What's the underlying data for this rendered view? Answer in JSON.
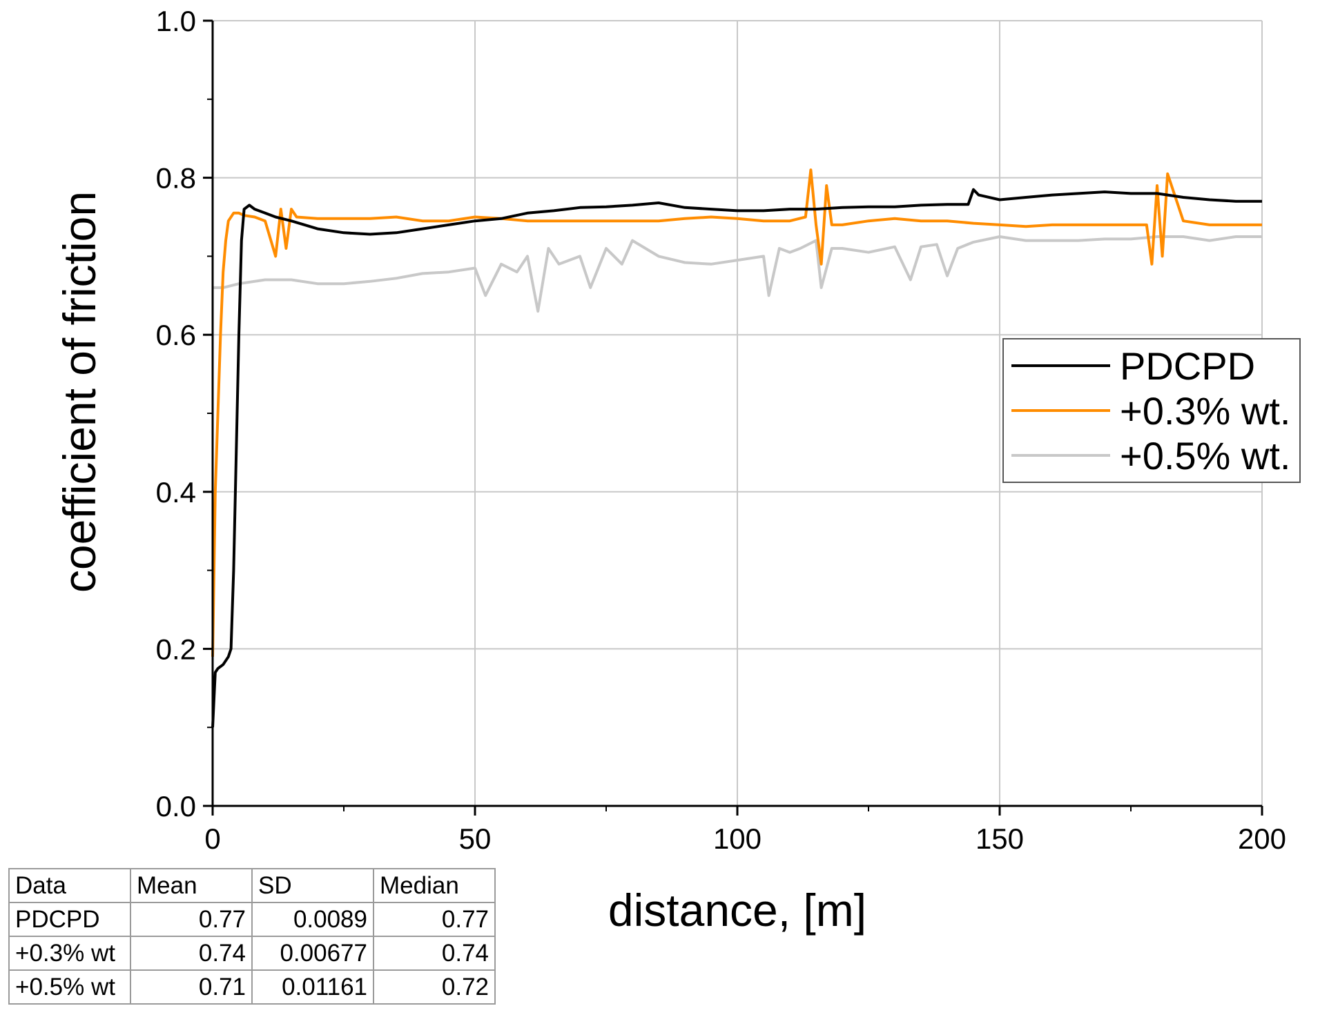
{
  "chart_data": {
    "type": "line",
    "xlabel": "distance, [m]",
    "ylabel": "coefficient of friction",
    "xlim": [
      0,
      200
    ],
    "ylim": [
      0,
      1.0
    ],
    "x_ticks": [
      "0",
      "50",
      "100",
      "150",
      "200"
    ],
    "y_ticks": [
      "0.0",
      "0.2",
      "0.4",
      "0.6",
      "0.8",
      "1.0"
    ],
    "grid": true,
    "legend_position": "right",
    "series": [
      {
        "name": "PDCPD",
        "color": "#000000",
        "x": [
          0,
          0.5,
          1,
          2,
          3,
          3.5,
          4,
          4.5,
          5,
          5.5,
          6,
          7,
          8,
          10,
          12,
          15,
          20,
          25,
          30,
          35,
          40,
          45,
          50,
          55,
          60,
          65,
          70,
          75,
          80,
          85,
          90,
          95,
          100,
          105,
          110,
          115,
          120,
          125,
          130,
          135,
          140,
          144,
          145,
          146,
          150,
          155,
          160,
          165,
          170,
          175,
          180,
          185,
          190,
          195,
          200
        ],
        "y": [
          0.1,
          0.17,
          0.175,
          0.18,
          0.19,
          0.2,
          0.3,
          0.45,
          0.6,
          0.72,
          0.76,
          0.765,
          0.76,
          0.755,
          0.75,
          0.745,
          0.735,
          0.73,
          0.728,
          0.73,
          0.735,
          0.74,
          0.745,
          0.748,
          0.755,
          0.758,
          0.762,
          0.763,
          0.765,
          0.768,
          0.762,
          0.76,
          0.758,
          0.758,
          0.76,
          0.76,
          0.762,
          0.763,
          0.763,
          0.765,
          0.766,
          0.766,
          0.785,
          0.778,
          0.772,
          0.775,
          0.778,
          0.78,
          0.782,
          0.78,
          0.78,
          0.775,
          0.772,
          0.77,
          0.77
        ]
      },
      {
        "name": "+0.3% wt.",
        "color": "#ff8c00",
        "x": [
          0,
          0.5,
          1,
          1.5,
          2,
          2.5,
          3,
          4,
          5,
          6,
          8,
          10,
          12,
          13,
          14,
          15,
          16,
          20,
          25,
          30,
          35,
          40,
          45,
          50,
          55,
          60,
          65,
          70,
          75,
          80,
          85,
          90,
          95,
          100,
          105,
          110,
          113,
          114,
          115,
          116,
          117,
          118,
          120,
          125,
          130,
          135,
          140,
          145,
          150,
          155,
          160,
          165,
          170,
          175,
          178,
          179,
          180,
          181,
          182,
          185,
          190,
          195,
          200
        ],
        "y": [
          0.19,
          0.4,
          0.5,
          0.6,
          0.68,
          0.72,
          0.745,
          0.755,
          0.755,
          0.752,
          0.75,
          0.745,
          0.7,
          0.76,
          0.71,
          0.76,
          0.75,
          0.748,
          0.748,
          0.748,
          0.75,
          0.745,
          0.745,
          0.75,
          0.748,
          0.745,
          0.745,
          0.745,
          0.745,
          0.745,
          0.745,
          0.748,
          0.75,
          0.748,
          0.745,
          0.745,
          0.75,
          0.81,
          0.74,
          0.69,
          0.79,
          0.74,
          0.74,
          0.745,
          0.748,
          0.745,
          0.745,
          0.742,
          0.74,
          0.738,
          0.74,
          0.74,
          0.74,
          0.74,
          0.74,
          0.69,
          0.79,
          0.7,
          0.805,
          0.745,
          0.74,
          0.74,
          0.74
        ]
      },
      {
        "name": "+0.5% wt.",
        "color": "#c8c8c8",
        "x": [
          0,
          1,
          2,
          5,
          10,
          15,
          20,
          25,
          30,
          35,
          40,
          45,
          50,
          52,
          55,
          58,
          60,
          62,
          64,
          66,
          70,
          72,
          75,
          78,
          80,
          85,
          90,
          95,
          100,
          105,
          106,
          108,
          110,
          112,
          115,
          116,
          118,
          120,
          125,
          130,
          133,
          135,
          138,
          140,
          142,
          145,
          150,
          155,
          160,
          165,
          170,
          175,
          180,
          185,
          190,
          195,
          200
        ],
        "y": [
          0.66,
          0.66,
          0.66,
          0.665,
          0.67,
          0.67,
          0.665,
          0.665,
          0.668,
          0.672,
          0.678,
          0.68,
          0.685,
          0.65,
          0.69,
          0.68,
          0.7,
          0.63,
          0.71,
          0.69,
          0.7,
          0.66,
          0.71,
          0.69,
          0.72,
          0.7,
          0.692,
          0.69,
          0.695,
          0.7,
          0.65,
          0.71,
          0.705,
          0.71,
          0.72,
          0.66,
          0.71,
          0.71,
          0.705,
          0.712,
          0.67,
          0.712,
          0.715,
          0.675,
          0.71,
          0.718,
          0.725,
          0.72,
          0.72,
          0.72,
          0.722,
          0.722,
          0.725,
          0.725,
          0.72,
          0.725,
          0.725
        ]
      }
    ]
  },
  "stats_table": {
    "headers": [
      "Data",
      "Mean",
      "SD",
      "Median"
    ],
    "rows": [
      [
        "PDCPD",
        "0.77",
        "0.0089",
        "0.77"
      ],
      [
        "+0.3% wt",
        "0.74",
        "0.00677",
        "0.74"
      ],
      [
        "+0.5% wt",
        "0.71",
        "0.01161",
        "0.72"
      ]
    ]
  }
}
